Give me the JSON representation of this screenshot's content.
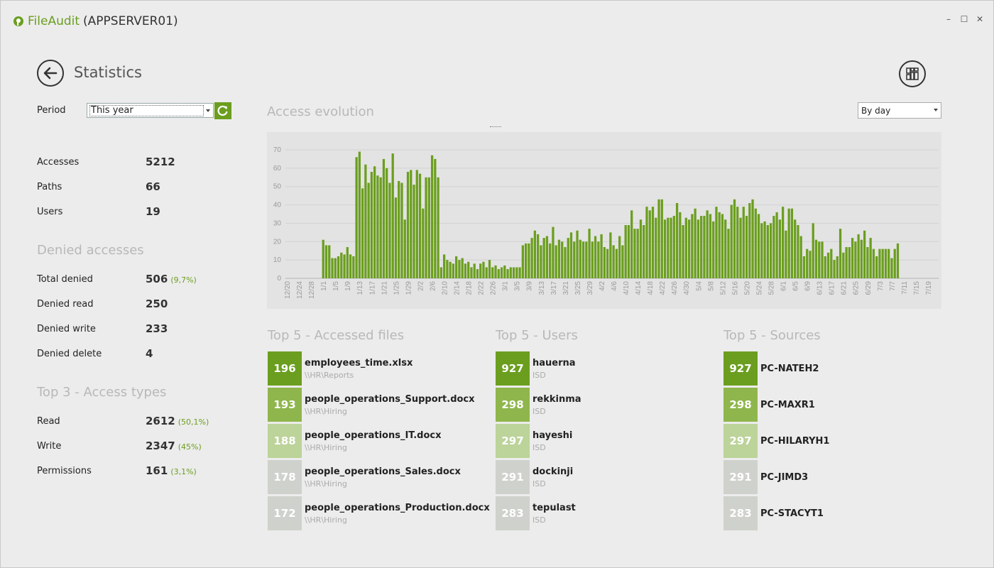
{
  "app": {
    "name": "FileAudit",
    "server": "(APPSERVER01)"
  },
  "window_controls": {
    "minimize": "–",
    "maximize": "☐",
    "close": "✕"
  },
  "page": {
    "title": "Statistics"
  },
  "period": {
    "label": "Period",
    "value": "This year"
  },
  "stats": [
    {
      "label": "Accesses",
      "value": "5212"
    },
    {
      "label": "Paths",
      "value": "66"
    },
    {
      "label": "Users",
      "value": "19"
    }
  ],
  "denied": {
    "title": "Denied accesses",
    "rows": [
      {
        "label": "Total denied",
        "value": "506",
        "pct": "(9,7%)"
      },
      {
        "label": "Denied read",
        "value": "250",
        "pct": ""
      },
      {
        "label": "Denied write",
        "value": "233",
        "pct": ""
      },
      {
        "label": "Denied delete",
        "value": "4",
        "pct": ""
      }
    ]
  },
  "access_types": {
    "title": "Top 3 - Access types",
    "rows": [
      {
        "label": "Read",
        "value": "2612",
        "pct": "(50,1%)"
      },
      {
        "label": "Write",
        "value": "2347",
        "pct": "(45%)"
      },
      {
        "label": "Permissions",
        "value": "161",
        "pct": "(3,1%)"
      }
    ]
  },
  "chart_header": {
    "title": "Access evolution",
    "grain": "By day"
  },
  "chart_data": {
    "type": "bar",
    "title": "Access evolution",
    "ylim": [
      0,
      70
    ],
    "yticks": [
      0,
      10,
      20,
      30,
      40,
      50,
      60,
      70
    ],
    "grid": true,
    "color": "#6b9e1f",
    "xtick_labels": [
      "12/20",
      "12/24",
      "12/28",
      "1/1",
      "1/5",
      "1/9",
      "1/13",
      "1/17",
      "1/21",
      "1/25",
      "1/29",
      "2/2",
      "2/6",
      "2/10",
      "2/14",
      "2/18",
      "2/22",
      "2/26",
      "3/1",
      "3/5",
      "3/9",
      "3/13",
      "3/17",
      "3/21",
      "3/25",
      "3/29",
      "4/2",
      "4/6",
      "4/10",
      "4/14",
      "4/18",
      "4/22",
      "4/26",
      "4/30",
      "5/4",
      "5/8",
      "5/12",
      "5/16",
      "5/20",
      "5/24",
      "5/28",
      "6/1",
      "6/5",
      "6/9",
      "6/13",
      "6/17",
      "6/21",
      "6/25",
      "6/29",
      "7/3",
      "7/7",
      "7/11",
      "7/15",
      "7/19"
    ],
    "x_start": "1/1",
    "values": [
      21,
      18,
      18,
      11,
      11,
      12,
      14,
      13,
      17,
      13,
      12,
      66,
      69,
      49,
      62,
      52,
      58,
      61,
      56,
      55,
      65,
      60,
      52,
      68,
      44,
      53,
      52,
      32,
      58,
      59,
      51,
      59,
      57,
      38,
      55,
      55,
      67,
      65,
      55,
      6,
      13,
      10,
      9,
      8,
      12,
      10,
      11,
      8,
      9,
      6,
      8,
      5,
      8,
      9,
      6,
      10,
      6,
      7,
      5,
      6,
      7,
      5,
      6,
      6,
      6,
      6,
      18,
      19,
      19,
      22,
      26,
      24,
      18,
      22,
      23,
      19,
      28,
      18,
      21,
      20,
      17,
      22,
      25,
      20,
      26,
      21,
      20,
      20,
      27,
      20,
      23,
      20,
      24,
      17,
      16,
      25,
      18,
      16,
      23,
      18,
      29,
      29,
      37,
      27,
      27,
      32,
      29,
      39,
      37,
      39,
      33,
      43,
      43,
      32,
      33,
      33,
      34,
      41,
      36,
      29,
      33,
      32,
      35,
      38,
      32,
      34,
      34,
      37,
      35,
      31,
      39,
      36,
      35,
      32,
      27,
      40,
      43,
      39,
      33,
      39,
      34,
      41,
      43,
      38,
      35,
      30,
      31,
      29,
      30,
      34,
      36,
      32,
      39,
      26,
      38,
      38,
      32,
      29,
      23,
      12,
      16,
      15,
      30,
      21,
      20,
      20,
      12,
      14,
      16,
      10,
      12,
      27,
      14,
      17,
      17,
      22,
      20,
      24,
      21,
      26,
      17,
      22,
      16,
      12,
      16,
      16,
      16,
      16,
      11,
      16,
      19
    ]
  },
  "top_files": {
    "title": "Top 5 - Accessed files",
    "items": [
      {
        "count": "196",
        "name": "employees_time.xlsx",
        "sub": "\\\\HR\\Reports"
      },
      {
        "count": "193",
        "name": "people_operations_Support.docx",
        "sub": "\\\\HR\\Hiring"
      },
      {
        "count": "188",
        "name": "people_operations_IT.docx",
        "sub": "\\\\HR\\Hiring"
      },
      {
        "count": "178",
        "name": "people_operations_Sales.docx",
        "sub": "\\\\HR\\Hiring"
      },
      {
        "count": "172",
        "name": "people_operations_Production.docx",
        "sub": "\\\\HR\\Hiring"
      }
    ]
  },
  "top_users": {
    "title": "Top 5 - Users",
    "items": [
      {
        "count": "927",
        "name": "hauerna",
        "sub": "ISD"
      },
      {
        "count": "298",
        "name": "rekkinma",
        "sub": "ISD"
      },
      {
        "count": "297",
        "name": "hayeshi",
        "sub": "ISD"
      },
      {
        "count": "291",
        "name": "dockinji",
        "sub": "ISD"
      },
      {
        "count": "283",
        "name": "tepulast",
        "sub": "ISD"
      }
    ]
  },
  "top_sources": {
    "title": "Top 5 - Sources",
    "items": [
      {
        "count": "927",
        "name": "PC-NATEH2",
        "sub": ""
      },
      {
        "count": "298",
        "name": "PC-MAXR1",
        "sub": ""
      },
      {
        "count": "297",
        "name": "PC-HILARYH1",
        "sub": ""
      },
      {
        "count": "291",
        "name": "PC-JIMD3",
        "sub": ""
      },
      {
        "count": "283",
        "name": "PC-STACYT1",
        "sub": ""
      }
    ]
  },
  "tile_colors": [
    "#6b9e1f",
    "#8fb64c",
    "#bcd39a",
    "#cfd2cc",
    "#cfd2cc"
  ]
}
